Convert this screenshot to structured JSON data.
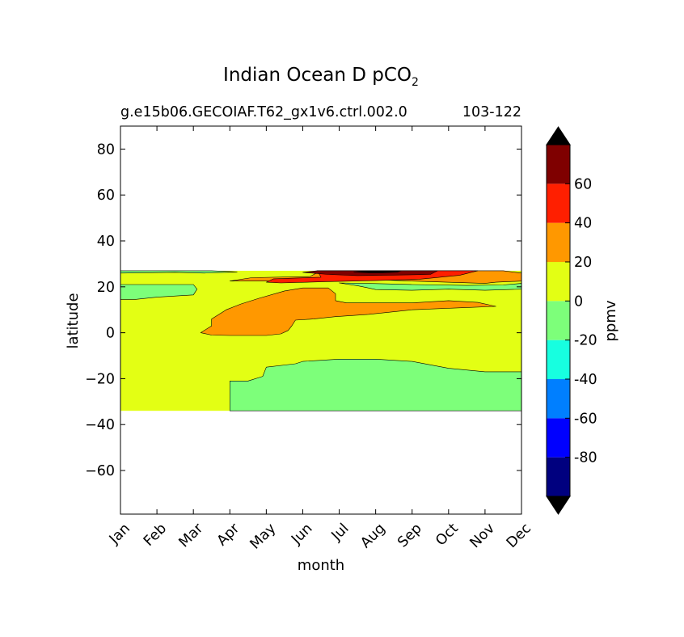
{
  "chart_data": {
    "type": "contourf",
    "title_main": "Indian Ocean D pCO",
    "title_sub": "2",
    "subtitle_left": "g.e15b06.GECOIAF.T62_gx1v6.ctrl.002.0",
    "subtitle_right": "103-122",
    "xlabel": "month",
    "ylabel": "latitude",
    "months": [
      "Jan",
      "Feb",
      "Mar",
      "Apr",
      "May",
      "Jun",
      "Jul",
      "Aug",
      "Sep",
      "Oct",
      "Nov",
      "Dec"
    ],
    "y_ticks": [
      80,
      60,
      40,
      20,
      0,
      -20,
      -40,
      -60
    ],
    "y_tick_labels": [
      "80",
      "60",
      "40",
      "20",
      "0",
      "−20",
      "−40",
      "−60"
    ],
    "ylim": [
      -79,
      90
    ],
    "xlim": [
      0,
      11
    ],
    "data_lat_range": [
      -34,
      27
    ],
    "colorbar": {
      "label": "ppmv",
      "levels": [
        -100,
        -80,
        -60,
        -40,
        -20,
        0,
        20,
        40,
        60,
        80
      ],
      "tick_values": [
        60,
        40,
        20,
        0,
        -20,
        -40,
        -60,
        -80
      ],
      "tick_labels": [
        "60",
        "40",
        "20",
        "0",
        "-20",
        "-40",
        "-60",
        "-80"
      ],
      "colors": [
        "#00007f",
        "#0000ff",
        "#007fff",
        "#17ffe0",
        "#7dff7a",
        "#e3ff14",
        "#ff9800",
        "#ff1f00",
        "#7f0000"
      ],
      "extend_low_color": "#000000",
      "extend_high_color": "#000000"
    },
    "regions": [
      {
        "name": "green-north-band",
        "level": "-20 to 0",
        "color": "#7dff7a",
        "points": [
          [
            0,
            27
          ],
          [
            2.5,
            27
          ],
          [
            3.2,
            26.5
          ],
          [
            2.3,
            26
          ],
          [
            1.5,
            26.3
          ],
          [
            0,
            26
          ],
          [
            0,
            27
          ]
        ]
      },
      {
        "name": "green-south-pocket",
        "level": "-20 to 0",
        "color": "#7dff7a",
        "points": [
          [
            0,
            21
          ],
          [
            2,
            21
          ],
          [
            2.1,
            19
          ],
          [
            2,
            16.5
          ],
          [
            1,
            15.5
          ],
          [
            0.4,
            14.5
          ],
          [
            0,
            14.5
          ]
        ]
      },
      {
        "name": "green-east-band",
        "level": "-20 to 0",
        "color": "#7dff7a",
        "points": [
          [
            6,
            21.7
          ],
          [
            7,
            21.4
          ],
          [
            8,
            21
          ],
          [
            9.5,
            20.6
          ],
          [
            10.5,
            20.8
          ],
          [
            11,
            21.5
          ],
          [
            11,
            19
          ],
          [
            10,
            18.5
          ],
          [
            9,
            19
          ],
          [
            8,
            18.5
          ],
          [
            7,
            18.8
          ],
          [
            6.8,
            19.5
          ],
          [
            6.5,
            20.5
          ],
          [
            6,
            21.7
          ]
        ]
      },
      {
        "name": "green-south",
        "level": "-20 to 0",
        "color": "#7dff7a",
        "points": [
          [
            3,
            -34
          ],
          [
            11,
            -34
          ],
          [
            11,
            -17
          ],
          [
            10,
            -17
          ],
          [
            9,
            -15.5
          ],
          [
            8,
            -12.5
          ],
          [
            7,
            -11.5
          ],
          [
            6,
            -11.5
          ],
          [
            5,
            -12.5
          ],
          [
            4.8,
            -13.5
          ],
          [
            4,
            -15
          ],
          [
            3.9,
            -19
          ],
          [
            3.5,
            -21
          ],
          [
            3,
            -21
          ],
          [
            3,
            -34
          ]
        ]
      },
      {
        "name": "orange-north",
        "level": "20 to 40",
        "color": "#ff9800",
        "points": [
          [
            3,
            22.5
          ],
          [
            3.6,
            24
          ],
          [
            5.2,
            24.5
          ],
          [
            5.5,
            27
          ],
          [
            10.5,
            27
          ],
          [
            11,
            26
          ],
          [
            11,
            22.5
          ],
          [
            10.3,
            22
          ],
          [
            10,
            21.5
          ],
          [
            8,
            22.5
          ],
          [
            7.2,
            23
          ],
          [
            6,
            22.7
          ],
          [
            4.5,
            22.5
          ],
          [
            3.3,
            22.5
          ],
          [
            3,
            22.5
          ]
        ]
      },
      {
        "name": "orange-central",
        "level": "20 to 40",
        "color": "#ff9800",
        "points": [
          [
            2.2,
            0
          ],
          [
            2.5,
            3
          ],
          [
            2.5,
            6
          ],
          [
            2.9,
            10
          ],
          [
            3.3,
            12.5
          ],
          [
            3.8,
            15
          ],
          [
            4.5,
            18.2
          ],
          [
            5,
            19.5
          ],
          [
            5.7,
            19.5
          ],
          [
            5.9,
            17
          ],
          [
            5.9,
            14
          ],
          [
            6.2,
            13
          ],
          [
            8,
            13
          ],
          [
            9,
            14
          ],
          [
            9.8,
            13.2
          ],
          [
            10.3,
            11.5
          ],
          [
            9.5,
            11
          ],
          [
            8,
            10
          ],
          [
            6.8,
            8
          ],
          [
            5.9,
            7
          ],
          [
            5.3,
            6
          ],
          [
            4.8,
            5.5
          ],
          [
            4.7,
            3
          ],
          [
            4.6,
            1
          ],
          [
            4.4,
            -0.5
          ],
          [
            4,
            -1.2
          ],
          [
            3,
            -1.2
          ],
          [
            2.5,
            -1
          ],
          [
            2.2,
            0
          ]
        ]
      },
      {
        "name": "red-north",
        "level": "40 to 60",
        "color": "#ff1f00",
        "points": [
          [
            4,
            22
          ],
          [
            4.2,
            23.5
          ],
          [
            5.5,
            24.2
          ],
          [
            5.4,
            27
          ],
          [
            9.8,
            27
          ],
          [
            9.3,
            25
          ],
          [
            8.2,
            23.3
          ],
          [
            7,
            22.7
          ],
          [
            5.5,
            22.2
          ],
          [
            4.4,
            21.7
          ],
          [
            4,
            22
          ]
        ]
      },
      {
        "name": "darkred-north",
        "level": "60 to 80",
        "color": "#7f0000",
        "points": [
          [
            5,
            26.3
          ],
          [
            5.4,
            27
          ],
          [
            8.7,
            27
          ],
          [
            8.5,
            25.4
          ],
          [
            7.5,
            25.1
          ],
          [
            6.5,
            24.9
          ],
          [
            5.7,
            25.4
          ],
          [
            5,
            26.3
          ]
        ]
      },
      {
        "name": "black-core",
        "level": "above 80",
        "color": "#000000",
        "points": [
          [
            6.4,
            26.5
          ],
          [
            6.8,
            27
          ],
          [
            7.7,
            27
          ],
          [
            7.6,
            26.4
          ],
          [
            7.2,
            26.1
          ],
          [
            6.8,
            26.1
          ],
          [
            6.4,
            26.5
          ]
        ]
      }
    ]
  }
}
